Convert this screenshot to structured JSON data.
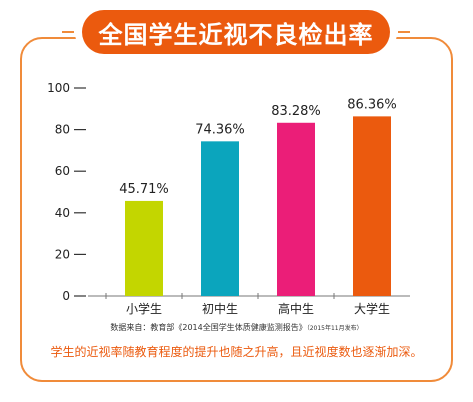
{
  "title": "全国学生近视不良检出率",
  "source": {
    "main": "数据来自：教育部《2014全国学生体质健康监测报告》",
    "note": "（2015年11月发布）"
  },
  "conclusion": "学生的近视率随教育程度的提升也随之升高，且近视度数也逐渐加深。",
  "colors": {
    "accent": "#EB5A0E",
    "bars": [
      "#C3D600",
      "#0BA5BD",
      "#EB1E78",
      "#EB5A0E"
    ]
  },
  "chart_data": {
    "type": "bar",
    "categories": [
      "小学生",
      "初中生",
      "高中生",
      "大学生"
    ],
    "values": [
      45.71,
      74.36,
      83.28,
      86.36
    ],
    "value_labels": [
      "45.71%",
      "74.36%",
      "83.28%",
      "86.36%"
    ],
    "ylim": [
      0,
      100
    ],
    "yticks": [
      0,
      20,
      40,
      60,
      80,
      100
    ],
    "ytick_labels": [
      "0",
      "20",
      "40",
      "60",
      "80",
      "100"
    ],
    "grid": false,
    "legend": "none",
    "title": "全国学生近视不良检出率"
  }
}
